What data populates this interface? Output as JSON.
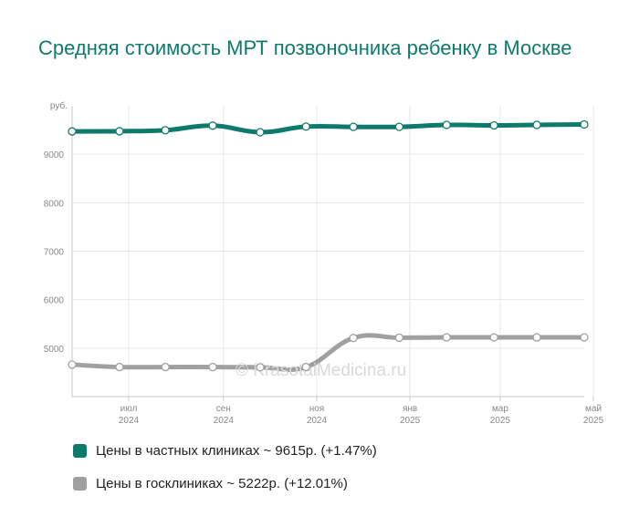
{
  "title": "Средняя стоимость МРТ позвоночника ребенку в Москве",
  "watermark": "© KrasotaiMedicina.ru",
  "legend": [
    {
      "label": "Цены в частных клиниках ~ 9615р. (+1.47%)",
      "color": "#0e7a6b"
    },
    {
      "label": "Цены в госклиниках ~ 5222р. (+12.01%)",
      "color": "#a0a0a0"
    }
  ],
  "chart_data": {
    "type": "line",
    "ylabel": "руб.",
    "ylim": [
      4000,
      10000
    ],
    "yticks": [
      5000,
      6000,
      7000,
      8000,
      9000
    ],
    "x": [
      "2024-05-25",
      "2024-06-25",
      "2024-07-25",
      "2024-08-25",
      "2024-09-25",
      "2024-10-25",
      "2024-11-25",
      "2024-12-25",
      "2025-01-25",
      "2025-02-25",
      "2025-03-25",
      "2025-04-25"
    ],
    "xticks": [
      {
        "date": "2024-07-01",
        "month": "июл",
        "year": "2024"
      },
      {
        "date": "2024-09-01",
        "month": "сен",
        "year": "2024"
      },
      {
        "date": "2024-11-01",
        "month": "ноя",
        "year": "2024"
      },
      {
        "date": "2025-01-01",
        "month": "янв",
        "year": "2025"
      },
      {
        "date": "2025-03-01",
        "month": "мар",
        "year": "2025"
      },
      {
        "date": "2025-05-01",
        "month": "май",
        "year": "2025"
      }
    ],
    "grid": true,
    "series": [
      {
        "name": "Цены в частных клиниках",
        "color": "#0e7a6b",
        "values": [
          9470,
          9475,
          9495,
          9590,
          9455,
          9570,
          9565,
          9565,
          9605,
          9595,
          9605,
          9615
        ]
      },
      {
        "name": "Цены в госклиниках",
        "color": "#a0a0a0",
        "values": [
          4660,
          4610,
          4610,
          4610,
          4605,
          4610,
          5210,
          5215,
          5222,
          5222,
          5222,
          5222
        ]
      }
    ]
  }
}
